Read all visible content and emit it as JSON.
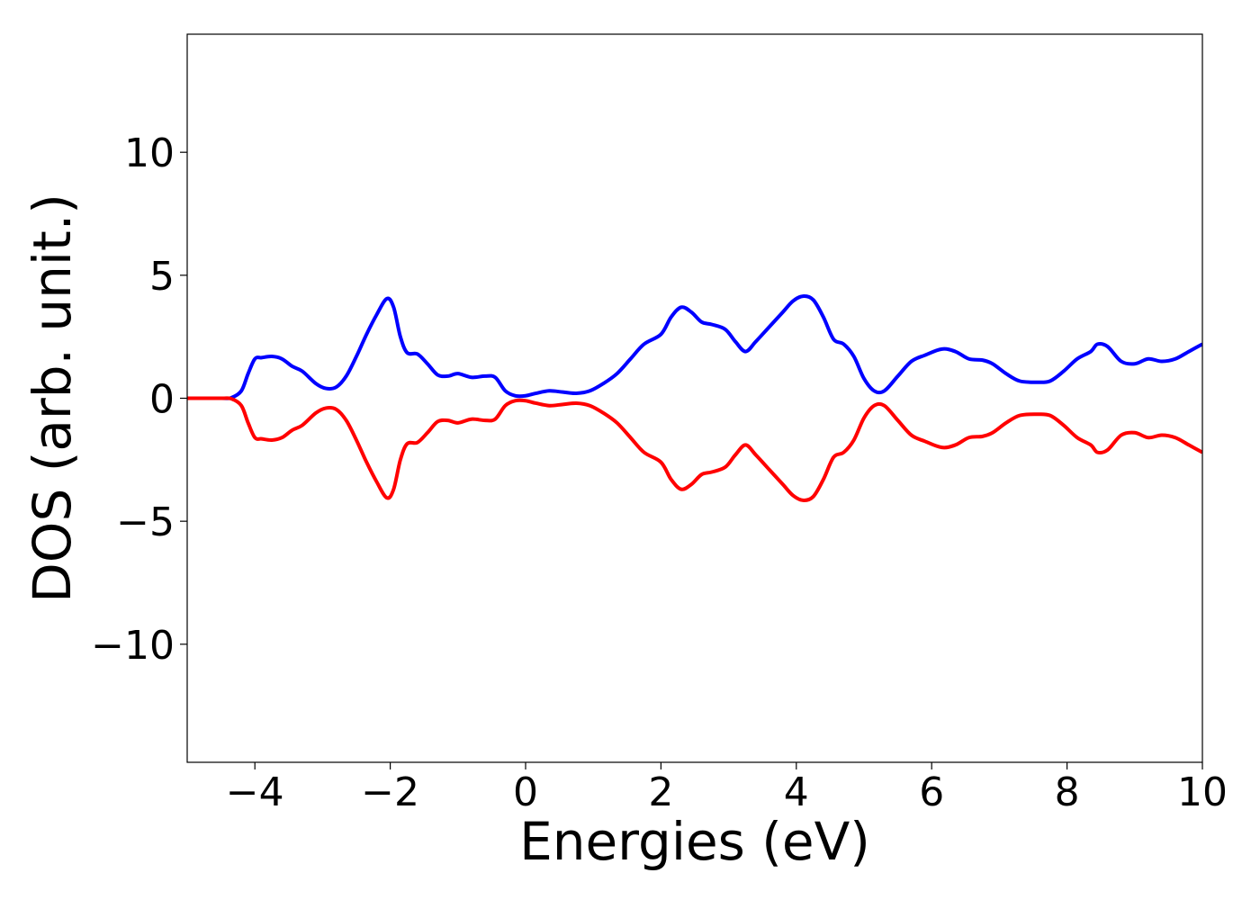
{
  "chart_data": {
    "type": "line",
    "title": "",
    "xlabel": "Energies (eV)",
    "ylabel": "DOS (arb. unit.)",
    "xlim": [
      -5,
      10
    ],
    "ylim": [
      -14.8,
      14.8
    ],
    "xticks": [
      -4,
      -2,
      0,
      2,
      4,
      6,
      8,
      10
    ],
    "xtick_labels": [
      "−4",
      "−2",
      "0",
      "2",
      "4",
      "6",
      "8",
      "10"
    ],
    "yticks": [
      -10,
      -5,
      0,
      5,
      10
    ],
    "ytick_labels": [
      "−10",
      "−5",
      "0",
      "5",
      "10"
    ],
    "grid": false,
    "legend": "none",
    "series": [
      {
        "color": "#0000ff",
        "x": [
          -5,
          -4.5,
          -4.35,
          -4.2,
          -4.1,
          -4.0,
          -3.9,
          -3.75,
          -3.6,
          -3.45,
          -3.3,
          -3.1,
          -2.95,
          -2.8,
          -2.65,
          -2.5,
          -2.35,
          -2.2,
          -2.05,
          -1.95,
          -1.85,
          -1.75,
          -1.6,
          -1.45,
          -1.3,
          -1.15,
          -1.0,
          -0.8,
          -0.6,
          -0.45,
          -0.3,
          -0.15,
          0.0,
          0.15,
          0.35,
          0.55,
          0.75,
          0.95,
          1.15,
          1.35,
          1.55,
          1.75,
          2.0,
          2.15,
          2.3,
          2.45,
          2.6,
          2.75,
          2.95,
          3.1,
          3.25,
          3.4,
          3.6,
          3.8,
          3.95,
          4.1,
          4.25,
          4.4,
          4.55,
          4.7,
          4.85,
          5.0,
          5.15,
          5.3,
          5.5,
          5.7,
          5.9,
          6.15,
          6.35,
          6.55,
          6.75,
          6.9,
          7.1,
          7.3,
          7.55,
          7.75,
          7.95,
          8.15,
          8.35,
          8.45,
          8.6,
          8.8,
          9.0,
          9.2,
          9.4,
          9.6,
          9.8,
          10.0
        ],
        "y": [
          0.0,
          0.0,
          0.02,
          0.3,
          1.0,
          1.6,
          1.65,
          1.7,
          1.6,
          1.3,
          1.1,
          0.6,
          0.4,
          0.45,
          0.9,
          1.7,
          2.6,
          3.4,
          4.05,
          3.7,
          2.5,
          1.85,
          1.8,
          1.4,
          0.95,
          0.9,
          1.0,
          0.85,
          0.9,
          0.85,
          0.3,
          0.1,
          0.1,
          0.2,
          0.3,
          0.25,
          0.2,
          0.3,
          0.6,
          1.0,
          1.6,
          2.2,
          2.6,
          3.3,
          3.7,
          3.5,
          3.1,
          3.0,
          2.8,
          2.3,
          1.9,
          2.3,
          2.9,
          3.5,
          3.95,
          4.15,
          4.0,
          3.3,
          2.4,
          2.2,
          1.7,
          0.8,
          0.3,
          0.3,
          0.9,
          1.5,
          1.75,
          2.0,
          1.9,
          1.6,
          1.55,
          1.4,
          1.0,
          0.7,
          0.65,
          0.7,
          1.1,
          1.6,
          1.9,
          2.2,
          2.1,
          1.5,
          1.4,
          1.6,
          1.5,
          1.6,
          1.9,
          2.2
        ]
      },
      {
        "color": "#ff0000",
        "x": [
          -5,
          -4.5,
          -4.35,
          -4.2,
          -4.1,
          -4.0,
          -3.9,
          -3.75,
          -3.6,
          -3.45,
          -3.3,
          -3.1,
          -2.95,
          -2.8,
          -2.65,
          -2.5,
          -2.35,
          -2.2,
          -2.05,
          -1.95,
          -1.85,
          -1.75,
          -1.6,
          -1.45,
          -1.3,
          -1.15,
          -1.0,
          -0.8,
          -0.6,
          -0.45,
          -0.3,
          -0.15,
          0.0,
          0.15,
          0.35,
          0.55,
          0.75,
          0.95,
          1.15,
          1.35,
          1.55,
          1.75,
          2.0,
          2.15,
          2.3,
          2.45,
          2.6,
          2.75,
          2.95,
          3.1,
          3.25,
          3.4,
          3.6,
          3.8,
          3.95,
          4.1,
          4.25,
          4.4,
          4.55,
          4.7,
          4.85,
          5.0,
          5.15,
          5.3,
          5.5,
          5.7,
          5.9,
          6.15,
          6.35,
          6.55,
          6.75,
          6.9,
          7.1,
          7.3,
          7.55,
          7.75,
          7.95,
          8.15,
          8.35,
          8.45,
          8.6,
          8.8,
          9.0,
          9.2,
          9.4,
          9.6,
          9.8,
          10.0
        ],
        "y": [
          0.0,
          0.0,
          -0.02,
          -0.3,
          -1.0,
          -1.6,
          -1.65,
          -1.7,
          -1.6,
          -1.3,
          -1.1,
          -0.6,
          -0.4,
          -0.45,
          -0.9,
          -1.7,
          -2.6,
          -3.4,
          -4.05,
          -3.7,
          -2.5,
          -1.85,
          -1.8,
          -1.4,
          -0.95,
          -0.9,
          -1.0,
          -0.85,
          -0.9,
          -0.85,
          -0.3,
          -0.1,
          -0.1,
          -0.2,
          -0.3,
          -0.25,
          -0.2,
          -0.3,
          -0.6,
          -1.0,
          -1.6,
          -2.2,
          -2.6,
          -3.3,
          -3.7,
          -3.5,
          -3.1,
          -3.0,
          -2.8,
          -2.3,
          -1.9,
          -2.3,
          -2.9,
          -3.5,
          -3.95,
          -4.15,
          -4.0,
          -3.3,
          -2.4,
          -2.2,
          -1.7,
          -0.8,
          -0.3,
          -0.3,
          -0.9,
          -1.5,
          -1.75,
          -2.0,
          -1.9,
          -1.6,
          -1.55,
          -1.4,
          -1.0,
          -0.7,
          -0.65,
          -0.7,
          -1.1,
          -1.6,
          -1.9,
          -2.2,
          -2.1,
          -1.5,
          -1.4,
          -1.6,
          -1.5,
          -1.6,
          -1.9,
          -2.2
        ]
      }
    ]
  }
}
